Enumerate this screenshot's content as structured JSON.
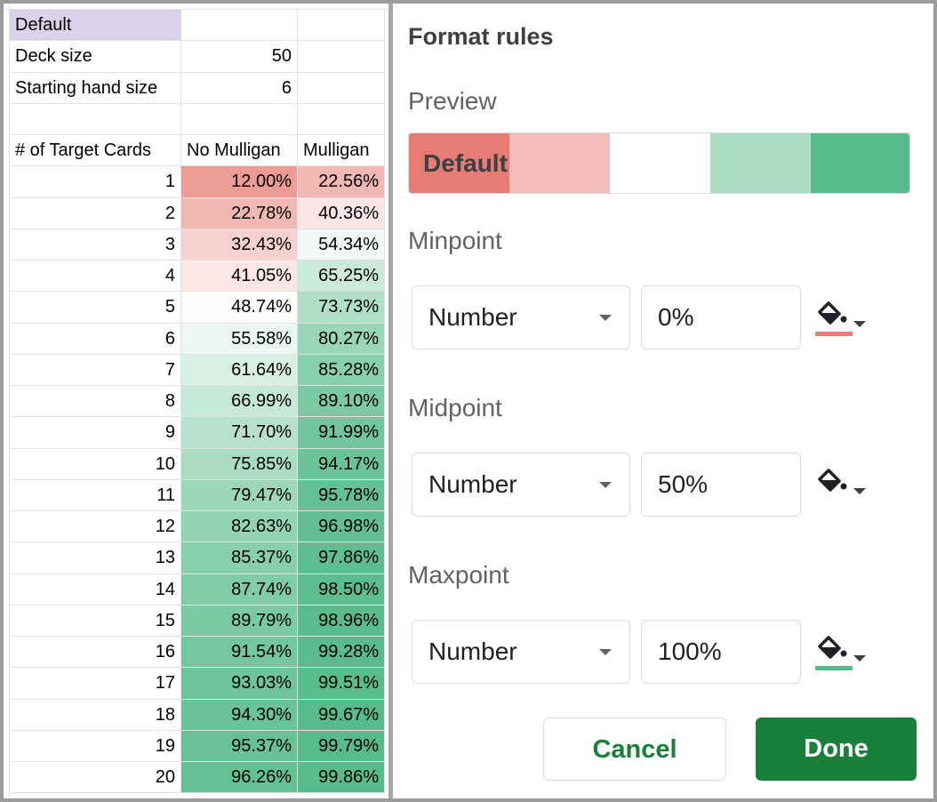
{
  "sheet": {
    "title_cell": "Default",
    "params": [
      [
        "Deck size",
        50
      ],
      [
        "Starting hand size",
        6
      ]
    ],
    "header": [
      "# of Target Cards",
      "No Mulligan",
      "Mulligan"
    ],
    "rows": [
      [
        1,
        "12.00%",
        "22.56%"
      ],
      [
        2,
        "22.78%",
        "40.36%"
      ],
      [
        3,
        "32.43%",
        "54.34%"
      ],
      [
        4,
        "41.05%",
        "65.25%"
      ],
      [
        5,
        "48.74%",
        "73.73%"
      ],
      [
        6,
        "55.58%",
        "80.27%"
      ],
      [
        7,
        "61.64%",
        "85.28%"
      ],
      [
        8,
        "66.99%",
        "89.10%"
      ],
      [
        9,
        "71.70%",
        "91.99%"
      ],
      [
        10,
        "75.85%",
        "94.17%"
      ],
      [
        11,
        "79.47%",
        "95.78%"
      ],
      [
        12,
        "82.63%",
        "96.98%"
      ],
      [
        13,
        "85.37%",
        "97.86%"
      ],
      [
        14,
        "87.74%",
        "98.50%"
      ],
      [
        15,
        "89.79%",
        "98.96%"
      ],
      [
        16,
        "91.54%",
        "99.28%"
      ],
      [
        17,
        "93.03%",
        "99.51%"
      ],
      [
        18,
        "94.30%",
        "99.67%"
      ],
      [
        19,
        "95.37%",
        "99.79%"
      ],
      [
        20,
        "96.26%",
        "99.86%"
      ]
    ]
  },
  "panel": {
    "title": "Format rules",
    "preview_label": "Preview",
    "preview_text": "Default",
    "points": [
      {
        "label": "Minpoint",
        "type": "Number",
        "value": "0%",
        "color": "#e67c73"
      },
      {
        "label": "Midpoint",
        "type": "Number",
        "value": "50%",
        "color": "#ffffff"
      },
      {
        "label": "Maxpoint",
        "type": "Number",
        "value": "100%",
        "color": "#57bb8a"
      }
    ],
    "cancel": "Cancel",
    "done": "Done"
  }
}
